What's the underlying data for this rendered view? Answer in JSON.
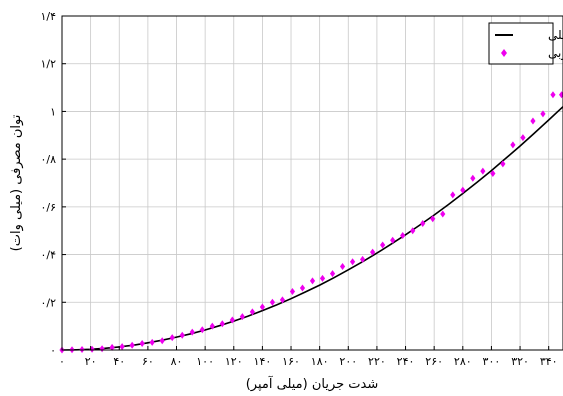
{
  "chart_data": {
    "type": "line",
    "xlabel": "شدت جریان (میلی آمپر)",
    "ylabel": "توان مصرفی (میلی وات)",
    "xlim": [
      0,
      350
    ],
    "ylim": [
      0,
      1.4
    ],
    "grid": true,
    "legend_position": "top-right",
    "x_ticks": [
      0,
      20,
      40,
      60,
      80,
      100,
      120,
      140,
      160,
      180,
      200,
      220,
      240,
      260,
      280,
      300,
      320,
      340
    ],
    "x_tick_labels": [
      "۰",
      "۲۰",
      "۴۰",
      "۶۰",
      "۸۰",
      "۱۰۰",
      "۱۲۰",
      "۱۴۰",
      "۱۶۰",
      "۱۸۰",
      "۲۰۰",
      "۲۲۰",
      "۲۴۰",
      "۲۶۰",
      "۲۸۰",
      "۳۰۰",
      "۳۲۰",
      "۳۴۰"
    ],
    "y_ticks": [
      0,
      0.2,
      0.4,
      0.6,
      0.8,
      1.0,
      1.2,
      1.4
    ],
    "y_tick_labels": [
      "۰",
      "۰/۲",
      "۰/۴",
      "۰/۶",
      "۰/۸",
      "۱",
      "۱/۲",
      "۱/۴"
    ],
    "series": [
      {
        "name": "تحلیلی",
        "style": "line",
        "color": "#000000",
        "x": [
          0,
          10,
          20,
          30,
          40,
          50,
          60,
          70,
          80,
          90,
          100,
          110,
          120,
          130,
          140,
          150,
          160,
          170,
          180,
          190,
          200,
          210,
          220,
          230,
          240,
          250,
          260,
          270,
          280,
          290,
          300,
          310,
          320,
          330,
          340,
          350
        ],
        "y": [
          0,
          0.001,
          0.003,
          0.007,
          0.013,
          0.02,
          0.03,
          0.041,
          0.054,
          0.068,
          0.084,
          0.102,
          0.121,
          0.142,
          0.165,
          0.189,
          0.215,
          0.243,
          0.272,
          0.303,
          0.336,
          0.37,
          0.406,
          0.444,
          0.483,
          0.524,
          0.566,
          0.61,
          0.656,
          0.703,
          0.752,
          0.803,
          0.855,
          0.909,
          0.964,
          1.02
        ]
      },
      {
        "name": "تجربی",
        "style": "markers",
        "marker": "diamond",
        "color": "#ee00ee",
        "x": [
          0,
          7,
          14,
          21,
          28,
          35,
          42,
          49,
          56,
          63,
          70,
          77,
          84,
          91,
          98,
          105,
          112,
          119,
          126,
          133,
          140,
          147,
          154,
          161,
          168,
          175,
          182,
          189,
          196,
          203,
          210,
          217,
          224,
          231,
          238,
          245,
          252,
          259,
          266,
          273,
          280,
          287,
          294,
          301,
          308,
          315,
          322,
          329,
          336,
          343,
          349
        ],
        "y": [
          0,
          0.001,
          0.002,
          0.003,
          0.005,
          0.011,
          0.014,
          0.02,
          0.027,
          0.032,
          0.039,
          0.052,
          0.062,
          0.075,
          0.085,
          0.1,
          0.11,
          0.126,
          0.14,
          0.16,
          0.18,
          0.2,
          0.21,
          0.245,
          0.26,
          0.29,
          0.3,
          0.32,
          0.35,
          0.37,
          0.38,
          0.41,
          0.44,
          0.46,
          0.48,
          0.5,
          0.53,
          0.55,
          0.57,
          0.65,
          0.67,
          0.72,
          0.75,
          0.74,
          0.78,
          0.86,
          0.89,
          0.96,
          0.99,
          1.07,
          1.07
        ]
      }
    ]
  }
}
